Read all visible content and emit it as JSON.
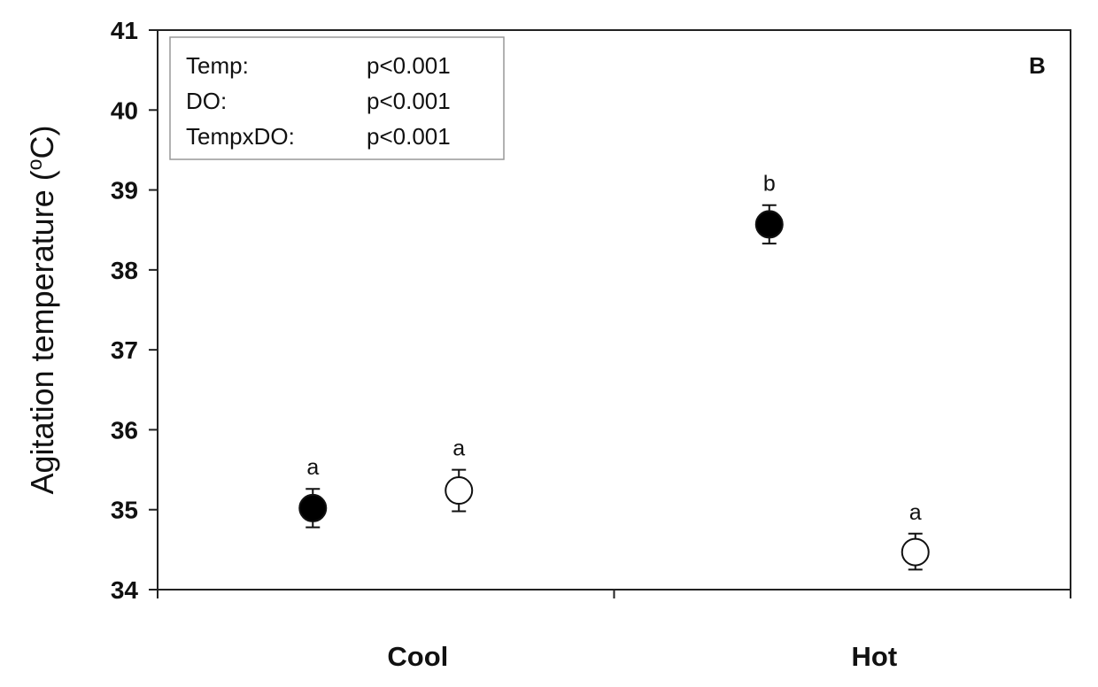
{
  "chart_data": {
    "type": "scatter",
    "panel_label": "B",
    "ylabel": "Agitation temperature (°C)",
    "ylabel_parts": [
      "Agitation temperature (",
      "o",
      "C)"
    ],
    "xlabel": "",
    "ylim": [
      34,
      41
    ],
    "yticks": [
      "34",
      "35",
      "36",
      "37",
      "38",
      "39",
      "40",
      "41"
    ],
    "categories": [
      "Cool",
      "Hot"
    ],
    "grid": false,
    "series": [
      {
        "marker": "filled-circle",
        "points": [
          {
            "category": "Cool",
            "y": 35.02,
            "err_low": 34.78,
            "err_high": 35.26,
            "letter": "a"
          },
          {
            "category": "Hot",
            "y": 38.57,
            "err_low": 38.33,
            "err_high": 38.81,
            "letter": "b"
          }
        ]
      },
      {
        "marker": "open-circle",
        "points": [
          {
            "category": "Cool",
            "y": 35.24,
            "err_low": 34.98,
            "err_high": 35.5,
            "letter": "a"
          },
          {
            "category": "Hot",
            "y": 34.47,
            "err_low": 34.25,
            "err_high": 34.7,
            "letter": "a"
          }
        ]
      }
    ],
    "stats_box": {
      "placement": "top-left",
      "rows": [
        {
          "term": "Temp:",
          "p": "p<0.001"
        },
        {
          "term": "DO:",
          "p": "p<0.001"
        },
        {
          "term": "TempxDO:",
          "p": "p<0.001"
        }
      ]
    }
  }
}
